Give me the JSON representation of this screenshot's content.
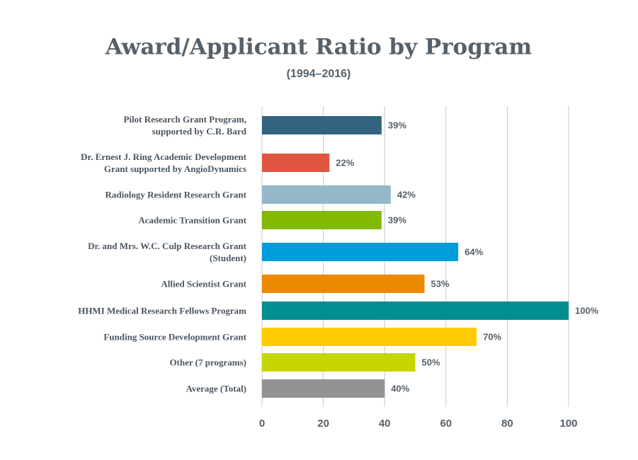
{
  "chart_data": {
    "type": "bar",
    "orientation": "horizontal",
    "title": "Award/Applicant Ratio by Program",
    "subtitle": "(1994–2016)",
    "categories": [
      "Pilot Research Grant Program,\nsupported by C.R. Bard",
      "Dr. Ernest J. Ring Academic Development\nGrant supported by AngioDynamics",
      "Radiology Resident Research Grant",
      "Academic Transition Grant",
      "Dr. and Mrs. W.C. Culp Research Grant\n(Student)",
      "Allied Scientist Grant",
      "HHMI Medical Research Fellows Program",
      "Funding Source Development Grant",
      "Other (7 programs)",
      "Average  (Total)"
    ],
    "values": [
      39,
      22,
      42,
      39,
      64,
      53,
      100,
      70,
      50,
      40
    ],
    "value_labels": [
      "39%",
      "22%",
      "42%",
      "39%",
      "64%",
      "53%",
      "100%",
      "70%",
      "50%",
      "40%"
    ],
    "colors": [
      "#33637e",
      "#e05540",
      "#93b8c9",
      "#82ba00",
      "#009ddc",
      "#eb8a00",
      "#008e91",
      "#fdcb00",
      "#c5d600",
      "#939393"
    ],
    "xlim": [
      0,
      100
    ],
    "xticks": [
      0,
      20,
      40,
      60,
      80,
      100
    ],
    "grid": true
  }
}
